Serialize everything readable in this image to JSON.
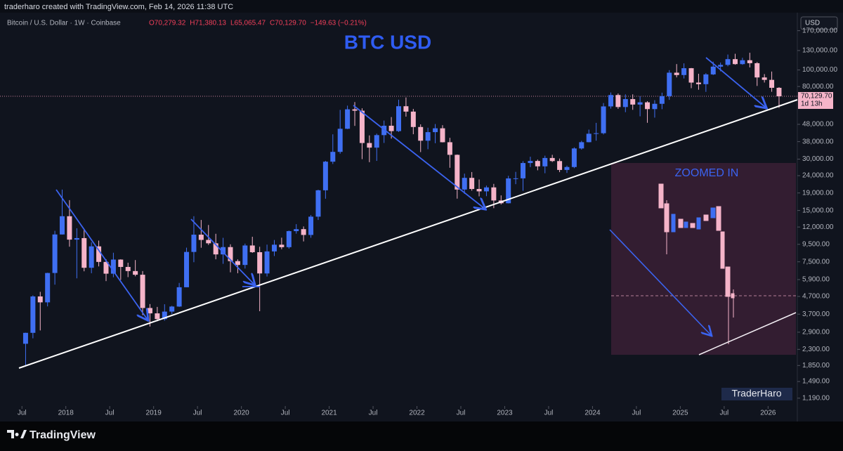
{
  "header": {
    "credit": "traderharo created with TradingView.com, Feb 14, 2026 11:38 UTC",
    "legend_symbol": "Bitcoin / U.S. Dollar · 1W · Coinbase",
    "legend_values": [
      "O70,279.32",
      "H71,380.13",
      "L65,065.47",
      "C70,129.70",
      "−149.63 (−0.21%)"
    ],
    "currency": "USD"
  },
  "footer": {
    "brand": "TradingView",
    "watermark": "TraderHaro"
  },
  "chart_data": {
    "type": "candlestick",
    "title": "BTC USD",
    "annotation": "ZOOMED IN",
    "log_scale": true,
    "up_color": "#3f6ff2",
    "down_color": "#f5b4c9",
    "x": [
      "2017-07",
      "2017-08",
      "2017-09",
      "2017-10",
      "2017-11",
      "2017-12",
      "2018-01",
      "2018-02",
      "2018-03",
      "2018-04",
      "2018-05",
      "2018-06",
      "2018-07",
      "2018-08",
      "2018-09",
      "2018-10",
      "2018-11",
      "2018-12",
      "2019-01",
      "2019-02",
      "2019-03",
      "2019-04",
      "2019-05",
      "2019-06",
      "2019-07",
      "2019-08",
      "2019-09",
      "2019-10",
      "2019-11",
      "2019-12",
      "2020-01",
      "2020-02",
      "2020-03",
      "2020-04",
      "2020-05",
      "2020-06",
      "2020-07",
      "2020-08",
      "2020-09",
      "2020-10",
      "2020-11",
      "2020-12",
      "2021-01",
      "2021-02",
      "2021-03",
      "2021-04",
      "2021-05",
      "2021-06",
      "2021-07",
      "2021-08",
      "2021-09",
      "2021-10",
      "2021-11",
      "2021-12",
      "2022-01",
      "2022-02",
      "2022-03",
      "2022-04",
      "2022-05",
      "2022-06",
      "2022-07",
      "2022-08",
      "2022-09",
      "2022-10",
      "2022-11",
      "2022-12",
      "2023-01",
      "2023-02",
      "2023-03",
      "2023-04",
      "2023-05",
      "2023-06",
      "2023-07",
      "2023-08",
      "2023-09",
      "2023-10",
      "2023-11",
      "2023-12",
      "2024-01",
      "2024-02",
      "2024-03",
      "2024-04",
      "2024-05",
      "2024-06",
      "2024-07",
      "2024-08",
      "2024-09",
      "2024-10",
      "2024-11",
      "2024-12",
      "2025-01",
      "2025-02",
      "2025-03",
      "2025-04",
      "2025-05",
      "2025-06",
      "2025-07",
      "2025-08",
      "2025-09",
      "2025-10",
      "2025-11",
      "2025-12",
      "2026-01",
      "2026-02"
    ],
    "open": [
      2480,
      2875,
      4700,
      4340,
      6450,
      10850,
      13880,
      10120,
      10330,
      6920,
      9240,
      7490,
      6390,
      7730,
      7000,
      6620,
      6300,
      4020,
      3740,
      3460,
      3830,
      4100,
      5320,
      8570,
      10820,
      10080,
      9630,
      8290,
      9150,
      7570,
      7190,
      9350,
      8540,
      6410,
      8630,
      9450,
      9140,
      11350,
      11660,
      10780,
      13800,
      19700,
      28990,
      33100,
      45200,
      58800,
      57700,
      37300,
      35050,
      41500,
      47100,
      43800,
      61300,
      57000,
      46300,
      38480,
      43200,
      45500,
      37700,
      31800,
      19900,
      23300,
      20050,
      19420,
      20490,
      17170,
      16540,
      23130,
      23150,
      28470,
      29270,
      27220,
      30470,
      29230,
      25930,
      26970,
      34660,
      37720,
      42270,
      42580,
      61150,
      71300,
      60640,
      67500,
      62680,
      64620,
      58970,
      63330,
      70220,
      96400,
      93400,
      102400,
      84350,
      82550,
      94200,
      104600,
      107100,
      115750,
      108250,
      114050,
      109600,
      90400,
      87500,
      78600
    ],
    "high": [
      2880,
      4770,
      5000,
      6470,
      11400,
      19890,
      17250,
      11800,
      11700,
      9760,
      9990,
      7760,
      8480,
      7760,
      7410,
      7680,
      6620,
      4240,
      4080,
      4230,
      4140,
      5640,
      9080,
      13880,
      13200,
      12330,
      10950,
      10370,
      9500,
      7750,
      9590,
      10520,
      9190,
      9460,
      10070,
      10390,
      11440,
      12470,
      12090,
      14100,
      19860,
      29300,
      41950,
      58350,
      61780,
      64850,
      59600,
      41330,
      42320,
      50500,
      52950,
      67000,
      69000,
      59100,
      47990,
      45850,
      48200,
      47450,
      40000,
      31950,
      24670,
      25200,
      22800,
      20990,
      21480,
      18390,
      23950,
      25270,
      29190,
      31000,
      29820,
      31440,
      31800,
      30230,
      27480,
      35190,
      38420,
      44700,
      48970,
      64000,
      73800,
      72800,
      71950,
      71960,
      70000,
      65600,
      66500,
      73620,
      99800,
      108300,
      109350,
      102750,
      95000,
      95760,
      111900,
      110500,
      123200,
      124450,
      117900,
      126200,
      111200,
      94600,
      97900,
      79300
    ],
    "low": [
      1830,
      2670,
      2970,
      4110,
      5510,
      10830,
      9200,
      6000,
      6600,
      6430,
      7050,
      5780,
      6090,
      5880,
      6100,
      6170,
      3650,
      3130,
      3360,
      3390,
      3700,
      4080,
      5330,
      7460,
      9070,
      9420,
      7760,
      7300,
      6510,
      6430,
      6850,
      8460,
      3850,
      6150,
      8110,
      8890,
      8960,
      10970,
      9880,
      10380,
      13200,
      17580,
      28100,
      32300,
      45000,
      47000,
      30000,
      28800,
      29300,
      37330,
      39600,
      43300,
      53250,
      42000,
      33000,
      34300,
      37200,
      37600,
      26700,
      17600,
      18780,
      19600,
      18150,
      18200,
      15480,
      16270,
      16500,
      21400,
      19560,
      26940,
      25810,
      24800,
      28860,
      25170,
      24900,
      26560,
      34110,
      37620,
      38500,
      41880,
      59300,
      59150,
      56560,
      58400,
      53500,
      49000,
      52550,
      58900,
      66800,
      90500,
      89160,
      78200,
      76600,
      74400,
      93400,
      98200,
      105100,
      107350,
      107300,
      103500,
      80600,
      84400,
      74500,
      60000
    ],
    "close": [
      2875,
      4700,
      4340,
      6450,
      10850,
      13880,
      10120,
      10330,
      6920,
      9240,
      7490,
      6390,
      7730,
      7000,
      6620,
      6300,
      4020,
      3740,
      3460,
      3830,
      4100,
      5320,
      8570,
      10820,
      10080,
      9630,
      8290,
      9150,
      7570,
      7190,
      9350,
      8540,
      6410,
      8630,
      9450,
      9140,
      11350,
      11660,
      10780,
      13800,
      19700,
      28990,
      33100,
      45200,
      58800,
      57700,
      37300,
      35050,
      41500,
      47100,
      43800,
      61300,
      57000,
      46300,
      38480,
      43200,
      45500,
      37700,
      31800,
      19900,
      23300,
      20050,
      19420,
      20490,
      17170,
      16540,
      23130,
      23150,
      28470,
      29270,
      27220,
      30470,
      29230,
      25930,
      26970,
      34660,
      37720,
      42270,
      42580,
      61150,
      71300,
      60640,
      67500,
      62680,
      64620,
      58970,
      63330,
      70220,
      96400,
      93400,
      102400,
      84350,
      82550,
      94200,
      104600,
      107100,
      115750,
      108250,
      114050,
      109600,
      90400,
      87500,
      78600,
      70129.7
    ],
    "xlim": [
      "2017-04",
      "2026-05"
    ],
    "xticks": [
      {
        "value": "2017-07",
        "label": "Jul"
      },
      {
        "value": "2018-01",
        "label": "2018"
      },
      {
        "value": "2018-07",
        "label": "Jul"
      },
      {
        "value": "2019-01",
        "label": "2019"
      },
      {
        "value": "2019-07",
        "label": "Jul"
      },
      {
        "value": "2020-01",
        "label": "2020"
      },
      {
        "value": "2020-07",
        "label": "Jul"
      },
      {
        "value": "2021-01",
        "label": "2021"
      },
      {
        "value": "2021-07",
        "label": "Jul"
      },
      {
        "value": "2022-01",
        "label": "2022"
      },
      {
        "value": "2022-07",
        "label": "Jul"
      },
      {
        "value": "2023-01",
        "label": "2023"
      },
      {
        "value": "2023-07",
        "label": "Jul"
      },
      {
        "value": "2024-01",
        "label": "2024"
      },
      {
        "value": "2024-07",
        "label": "Jul"
      },
      {
        "value": "2025-01",
        "label": "2025"
      },
      {
        "value": "2025-07",
        "label": "Jul"
      },
      {
        "value": "2026-01",
        "label": "2026"
      }
    ],
    "ylim": [
      1070,
      176000
    ],
    "yticks": [
      {
        "value": 170000,
        "label": "170,000.00"
      },
      {
        "value": 130000,
        "label": "130,000.00"
      },
      {
        "value": 100000,
        "label": "100,000.00"
      },
      {
        "value": 80000,
        "label": "80,000.00"
      },
      {
        "value": 48000,
        "label": "48,000.00"
      },
      {
        "value": 38000,
        "label": "38,000.00"
      },
      {
        "value": 30000,
        "label": "30,000.00"
      },
      {
        "value": 24000,
        "label": "24,000.00"
      },
      {
        "value": 19000,
        "label": "19,000.00"
      },
      {
        "value": 15000,
        "label": "15,000.00"
      },
      {
        "value": 12000,
        "label": "12,000.00"
      },
      {
        "value": 9500,
        "label": "9,500.00"
      },
      {
        "value": 7500,
        "label": "7,500.00"
      },
      {
        "value": 5900,
        "label": "5,900.00"
      },
      {
        "value": 4700,
        "label": "4,700.00"
      },
      {
        "value": 3700,
        "label": "3,700.00"
      },
      {
        "value": 2900,
        "label": "2,900.00"
      },
      {
        "value": 2300,
        "label": "2,300.00"
      },
      {
        "value": 1850,
        "label": "1,850.00"
      },
      {
        "value": 1490,
        "label": "1,490.00"
      },
      {
        "value": 1190,
        "label": "1,190.00"
      }
    ],
    "last_price": {
      "value": 70129.7,
      "label": "70,129.70"
    },
    "countdown": "1d 13h"
  }
}
